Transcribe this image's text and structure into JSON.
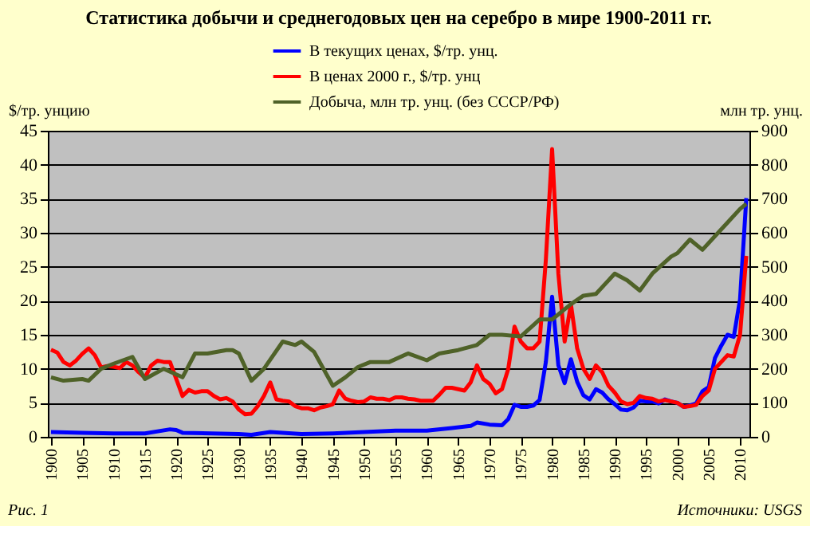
{
  "chart_data": {
    "type": "line",
    "title": "Статистика добычи и среднегодовых цен на серебро в мире 1900-2011 гг.",
    "ylabel": "$/тр. унцию",
    "y2label": "млн тр. унц.",
    "xlim": [
      1899.5,
      2011.5
    ],
    "xticks": [
      1900,
      1905,
      1910,
      1915,
      1920,
      1925,
      1930,
      1935,
      1940,
      1945,
      1950,
      1955,
      1960,
      1965,
      1970,
      1975,
      1980,
      1985,
      1990,
      1995,
      2000,
      2005,
      2010
    ],
    "ylim": [
      0,
      45
    ],
    "yticks": [
      0,
      5,
      10,
      15,
      20,
      25,
      30,
      35,
      40,
      45
    ],
    "y2lim": [
      0,
      900
    ],
    "y2ticks": [
      0,
      100,
      200,
      300,
      400,
      500,
      600,
      700,
      800,
      900
    ],
    "grid": "y",
    "legend": "top",
    "line_style": "solid",
    "marker": "none",
    "annotations": [
      "Рис. 1",
      "Источники: USGS"
    ],
    "series": [
      {
        "name": "В текущих ценах, $/тр. унц.",
        "color": "#0000ff",
        "x": [
          1900,
          1905,
          1910,
          1915,
          1919,
          1920,
          1921,
          1930,
          1932,
          1935,
          1940,
          1945,
          1950,
          1955,
          1960,
          1964,
          1967,
          1968,
          1970,
          1972,
          1973,
          1974,
          1975,
          1976,
          1977,
          1978,
          1979,
          1980,
          1981,
          1982,
          1983,
          1984,
          1985,
          1986,
          1987,
          1988,
          1989,
          1990,
          1991,
          1992,
          1993,
          1994,
          1995,
          1996,
          1997,
          1998,
          1999,
          2000,
          2001,
          2002,
          2003,
          2004,
          2005,
          2006,
          2007,
          2008,
          2009,
          2010,
          2011
        ],
        "values": [
          0.7,
          0.6,
          0.5,
          0.5,
          1.1,
          1,
          0.6,
          0.4,
          0.3,
          0.7,
          0.4,
          0.5,
          0.7,
          0.9,
          0.9,
          1.3,
          1.6,
          2.1,
          1.8,
          1.7,
          2.6,
          4.7,
          4.4,
          4.4,
          4.6,
          5.4,
          11,
          20.6,
          10.5,
          7.9,
          11.4,
          8.1,
          6.1,
          5.5,
          7,
          6.5,
          5.5,
          4.8,
          4,
          3.9,
          4.3,
          5.3,
          5.2,
          5.2,
          4.9,
          5.5,
          5.2,
          5,
          4.4,
          4.6,
          4.9,
          6.7,
          7.3,
          11.6,
          13.4,
          15,
          14.7,
          20.2,
          35.1
        ]
      },
      {
        "name": "В ценах 2000 г., $/тр. унц",
        "color": "#ff0000",
        "x": [
          1900,
          1901,
          1902,
          1903,
          1904,
          1905,
          1906,
          1907,
          1908,
          1909,
          1910,
          1911,
          1912,
          1913,
          1914,
          1915,
          1916,
          1917,
          1918,
          1919,
          1920,
          1921,
          1922,
          1923,
          1924,
          1925,
          1926,
          1927,
          1928,
          1929,
          1930,
          1931,
          1932,
          1933,
          1934,
          1935,
          1936,
          1937,
          1938,
          1939,
          1940,
          1941,
          1942,
          1943,
          1944,
          1945,
          1946,
          1947,
          1948,
          1949,
          1950,
          1951,
          1952,
          1953,
          1954,
          1955,
          1956,
          1957,
          1958,
          1959,
          1960,
          1961,
          1962,
          1963,
          1964,
          1965,
          1966,
          1967,
          1968,
          1969,
          1970,
          1971,
          1972,
          1973,
          1974,
          1975,
          1976,
          1977,
          1978,
          1979,
          1980,
          1981,
          1982,
          1983,
          1984,
          1985,
          1986,
          1987,
          1988,
          1989,
          1990,
          1991,
          1992,
          1993,
          1994,
          1995,
          1996,
          1997,
          1998,
          1999,
          2000,
          2001,
          2002,
          2003,
          2004,
          2005,
          2006,
          2007,
          2008,
          2009,
          2010,
          2011
        ],
        "values": [
          12.8,
          12.4,
          11,
          10.5,
          11.2,
          12.2,
          13,
          12,
          10.2,
          10.4,
          10.3,
          10.1,
          11,
          10.5,
          9.5,
          8.7,
          10.5,
          11.2,
          11,
          11,
          8.5,
          6,
          6.9,
          6.5,
          6.7,
          6.7,
          6,
          5.5,
          5.7,
          5.2,
          4,
          3.3,
          3.4,
          4.5,
          6,
          8,
          5.5,
          5.3,
          5.2,
          4.5,
          4.2,
          4.2,
          3.9,
          4.3,
          4.5,
          4.8,
          6.8,
          5.6,
          5.3,
          5.1,
          5.2,
          5.8,
          5.6,
          5.6,
          5.4,
          5.8,
          5.8,
          5.6,
          5.5,
          5.3,
          5.3,
          5.3,
          6.2,
          7.2,
          7.2,
          7,
          6.8,
          8,
          10.5,
          8.5,
          7.8,
          6.4,
          7,
          10,
          16.2,
          14,
          13,
          13,
          14,
          26,
          42.3,
          24,
          14,
          19.5,
          13,
          10,
          8.5,
          10.5,
          9.5,
          7.5,
          6.5,
          5.2,
          4.8,
          5,
          6,
          5.7,
          5.6,
          5.2,
          5.4,
          5.2,
          5,
          4.4,
          4.5,
          4.7,
          6,
          6.8,
          10,
          11,
          12,
          11.8,
          15,
          26.6
        ]
      },
      {
        "name": "Добыча, млн тр. унц. (без СССР/РФ)",
        "color": "#4f6228",
        "axis": "y2",
        "x": [
          1900,
          1902,
          1905,
          1906,
          1908,
          1910,
          1913,
          1915,
          1918,
          1921,
          1923,
          1925,
          1928,
          1929,
          1930,
          1932,
          1934,
          1937,
          1939,
          1940,
          1942,
          1945,
          1947,
          1949,
          1951,
          1954,
          1957,
          1960,
          1962,
          1965,
          1968,
          1970,
          1972,
          1975,
          1978,
          1980,
          1983,
          1985,
          1987,
          1990,
          1992,
          1994,
          1996,
          1999,
          2000,
          2002,
          2004,
          2006,
          2008,
          2010,
          2011
        ],
        "values": [
          175,
          165,
          170,
          165,
          200,
          215,
          235,
          170,
          200,
          175,
          245,
          245,
          255,
          255,
          245,
          165,
          200,
          280,
          270,
          280,
          250,
          150,
          175,
          205,
          220,
          220,
          245,
          225,
          245,
          255,
          270,
          300,
          300,
          295,
          345,
          345,
          390,
          415,
          420,
          480,
          460,
          430,
          480,
          530,
          540,
          580,
          550,
          590,
          630,
          670,
          685
        ]
      }
    ]
  }
}
